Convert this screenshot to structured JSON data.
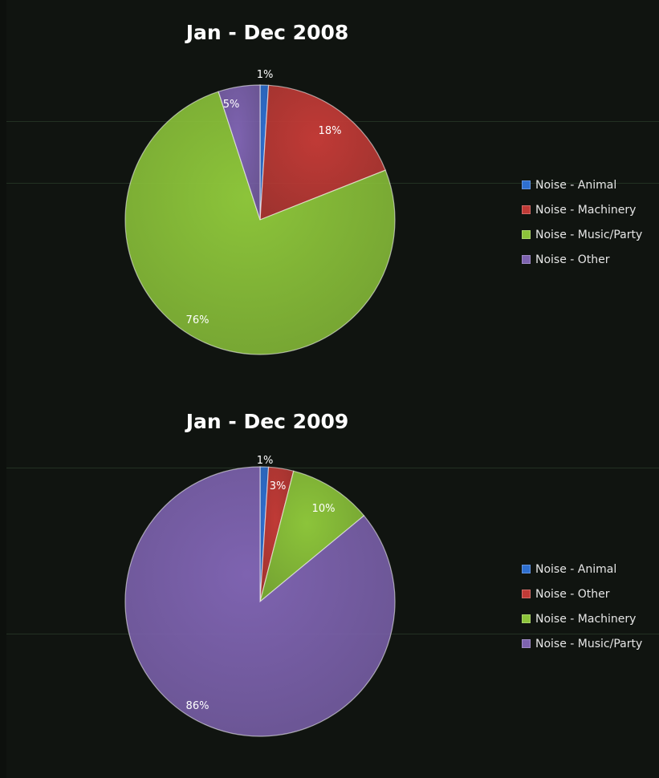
{
  "chart_data": [
    {
      "type": "pie",
      "title": "Jan - Dec 2008",
      "legend_position": "right",
      "slices": [
        {
          "name": "Noise - Animal",
          "value": 1,
          "label": "1%",
          "color": "#2e6fd0"
        },
        {
          "name": "Noise - Machinery",
          "value": 18,
          "label": "18%",
          "color": "#c03a36"
        },
        {
          "name": "Noise - Music/Party",
          "value": 76,
          "label": "76%",
          "color": "#8cc43a"
        },
        {
          "name": "Noise - Other",
          "value": 5,
          "label": "5%",
          "color": "#7e63b0"
        }
      ]
    },
    {
      "type": "pie",
      "title": "Jan - Dec 2009",
      "legend_position": "right",
      "slices": [
        {
          "name": "Noise - Animal",
          "value": 1,
          "label": "1%",
          "color": "#2e6fd0"
        },
        {
          "name": "Noise - Other",
          "value": 3,
          "label": "3%",
          "color": "#c03a36"
        },
        {
          "name": "Noise - Machinery",
          "value": 10,
          "label": "10%",
          "color": "#8cc43a"
        },
        {
          "name": "Noise - Music/Party",
          "value": 86,
          "label": "86%",
          "color": "#7e63b0"
        }
      ]
    }
  ]
}
